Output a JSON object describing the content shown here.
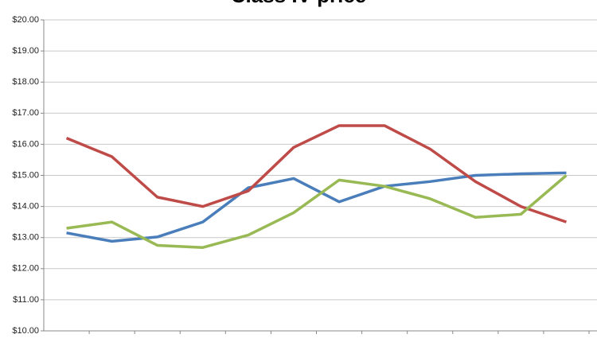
{
  "chart_data": {
    "type": "line",
    "title": "Class IV price",
    "categories": [
      null,
      null,
      null,
      null,
      null,
      null,
      null,
      null,
      null,
      null,
      null,
      null
    ],
    "series": [
      {
        "color": "#4a7ebb",
        "values": [
          13.15,
          12.88,
          13.02,
          13.5,
          14.6,
          14.9,
          14.15,
          14.65,
          14.8,
          15.0,
          15.05,
          15.08
        ]
      },
      {
        "color": "#be4b48",
        "values": [
          16.2,
          15.6,
          14.3,
          14.0,
          14.5,
          15.9,
          16.6,
          16.6,
          15.85,
          14.8,
          14.0,
          13.5
        ]
      },
      {
        "color": "#98b954",
        "values": [
          13.3,
          13.5,
          12.75,
          12.68,
          13.08,
          13.8,
          14.85,
          14.65,
          14.25,
          13.65,
          13.75,
          15.0
        ]
      }
    ],
    "ylim": [
      10,
      20
    ],
    "yticks": [
      {
        "value": 10,
        "label": "$10.00"
      },
      {
        "value": 11,
        "label": "$11.00"
      },
      {
        "value": 12,
        "label": "$12.00"
      },
      {
        "value": 13,
        "label": "$13.00"
      },
      {
        "value": 14,
        "label": "$14.00"
      },
      {
        "value": 15,
        "label": "$15.00"
      },
      {
        "value": 16,
        "label": "$16.00"
      },
      {
        "value": 17,
        "label": "$17.00"
      },
      {
        "value": 18,
        "label": "$18.00"
      },
      {
        "value": 19,
        "label": "$19.00"
      },
      {
        "value": 20,
        "label": "$20.00"
      }
    ],
    "grid": true
  }
}
